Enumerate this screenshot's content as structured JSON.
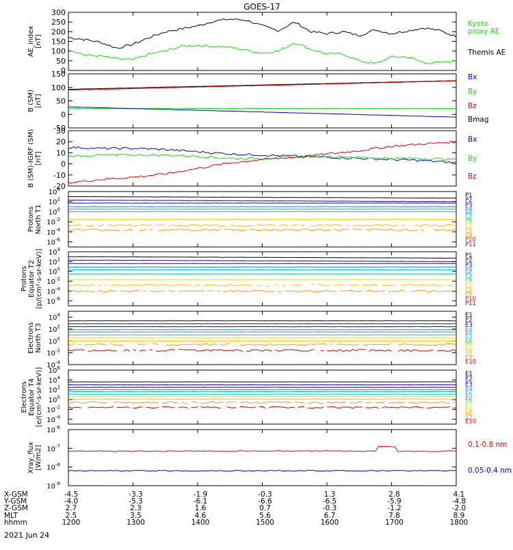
{
  "title": "GOES-17",
  "date_label": "2021 Jun 24",
  "colors": {
    "black": "#000000",
    "green": "#11dd11",
    "blue": "#0000dd",
    "red": "#dd0000",
    "cyan": "#00aadd",
    "teal": "#00cc99",
    "yellow": "#dddd00",
    "orange": "#ff9900"
  },
  "chart_data": [
    {
      "type": "line",
      "ylabel": [
        "AE_index",
        "[nT]"
      ],
      "ylim": [
        0,
        300
      ],
      "yticks": [
        "0",
        "50",
        "100",
        "150",
        "200",
        "250",
        "300"
      ],
      "legend": [
        {
          "label": "Kyoto",
          "color": "#11dd11"
        },
        {
          "label": "proxy AE",
          "color": "#11dd11"
        },
        {
          "label": "Themis AE",
          "color": "#000000"
        }
      ],
      "x": [
        1200,
        1215,
        1230,
        1245,
        1300,
        1315,
        1330,
        1345,
        1400,
        1415,
        1430,
        1445,
        1500,
        1515,
        1530,
        1545,
        1600,
        1615,
        1630,
        1645,
        1700,
        1715,
        1730,
        1745,
        1800
      ],
      "series": [
        {
          "color": "#000000",
          "values": [
            170,
            160,
            145,
            115,
            135,
            170,
            200,
            215,
            230,
            255,
            265,
            260,
            230,
            205,
            250,
            200,
            190,
            200,
            180,
            210,
            190,
            205,
            220,
            205,
            175
          ]
        },
        {
          "color": "#11dd11",
          "values": [
            110,
            80,
            75,
            60,
            55,
            85,
            100,
            125,
            130,
            125,
            120,
            105,
            90,
            100,
            145,
            110,
            85,
            85,
            50,
            35,
            70,
            70,
            40,
            40,
            50
          ]
        }
      ]
    },
    {
      "type": "line",
      "ylabel": [
        "B (SM)",
        "[nT]"
      ],
      "ylim": [
        -50,
        150
      ],
      "yticks": [
        "-50",
        "0",
        "50",
        "100",
        "150"
      ],
      "legend": [
        {
          "label": "Bx",
          "color": "#0000dd"
        },
        {
          "label": "By",
          "color": "#11dd11"
        },
        {
          "label": "Bz",
          "color": "#dd0000"
        },
        {
          "label": "Bmag",
          "color": "#000000"
        }
      ],
      "x": [
        1200,
        1800
      ],
      "series": [
        {
          "color": "#000000",
          "values": [
            93,
            125
          ]
        },
        {
          "color": "#dd0000",
          "values": [
            90,
            124
          ]
        },
        {
          "color": "#11dd11",
          "values": [
            22,
            22
          ]
        },
        {
          "color": "#0000dd",
          "values": [
            28,
            -10
          ]
        }
      ]
    },
    {
      "type": "line",
      "ylabel": [
        "B (SM)-IGRF (SM)",
        "[nT]"
      ],
      "ylim": [
        -20,
        30
      ],
      "yticks": [
        "-20",
        "-10",
        "0",
        "10",
        "20",
        "30"
      ],
      "legend": [
        {
          "label": "Bx",
          "color": "#0000dd"
        },
        {
          "label": "By",
          "color": "#11dd11"
        },
        {
          "label": "Bz",
          "color": "#dd0000"
        }
      ],
      "x": [
        1200,
        1230,
        1300,
        1330,
        1400,
        1430,
        1500,
        1530,
        1600,
        1630,
        1700,
        1730,
        1800
      ],
      "series": [
        {
          "color": "#0000dd",
          "values": [
            15,
            14,
            14,
            13,
            11,
            9,
            8,
            7,
            6,
            5,
            4,
            3,
            1
          ]
        },
        {
          "color": "#11dd11",
          "values": [
            7,
            8,
            8,
            8,
            7,
            5,
            5,
            6,
            7,
            6,
            5,
            5,
            4
          ]
        },
        {
          "color": "#dd0000",
          "values": [
            -17,
            -14,
            -12,
            -9,
            -4,
            1,
            4,
            6,
            9,
            12,
            16,
            18,
            20
          ]
        }
      ]
    },
    {
      "type": "line",
      "ylog": true,
      "ylabel": [
        "Protons",
        "North T1"
      ],
      "ylim": [
        -7,
        4
      ],
      "yticks_exp": [
        -6,
        -4,
        -2,
        0,
        2,
        4
      ],
      "legend": [
        "P1",
        "P2",
        "P3",
        "P4",
        "P5",
        "P6",
        "P7",
        "P8",
        "P9",
        "P10",
        "P11"
      ],
      "legend_colors": [
        "#000000",
        "#220088",
        "#0000dd",
        "#0088dd",
        "#00aadd",
        "#00cc99",
        "#dddd00",
        "#ffbb00",
        "#ff9900",
        "#dd2200",
        "#cc0000"
      ],
      "series_levels": [
        3.0,
        2.3,
        1.7,
        1.0,
        0.5,
        0.0,
        -1.5,
        -2.7,
        -3.6
      ]
    },
    {
      "type": "line",
      "ylog": true,
      "ylabel": [
        "Protons",
        "Equator T2",
        "[p/(cm²-s-sr-keV)]"
      ],
      "ylim": [
        -7,
        4
      ],
      "yticks_exp": [
        -6,
        -4,
        -2,
        0,
        2,
        4
      ],
      "legend": [
        "P1",
        "P2",
        "P3",
        "P4",
        "P5",
        "P6",
        "P7",
        "P8",
        "P9",
        "P10",
        "P11"
      ],
      "legend_colors": [
        "#000000",
        "#220088",
        "#0000dd",
        "#0088dd",
        "#00aadd",
        "#00cc99",
        "#dddd00",
        "#ffbb00",
        "#ff9900",
        "#dd2200",
        "#cc0000"
      ],
      "series_levels": [
        3.0,
        2.3,
        1.6,
        0.9,
        0.3,
        -0.5,
        -1.7,
        -2.8,
        -4.0
      ]
    },
    {
      "type": "line",
      "ylog": true,
      "ylabel": [
        "Electrons",
        "North T3"
      ],
      "ylim": [
        -4,
        5
      ],
      "yticks_exp": [
        -4,
        -2,
        0,
        2,
        4
      ],
      "legend": [
        "E1",
        "E2",
        "E3",
        "E4",
        "E5",
        "E6",
        "E7",
        "E8",
        "E9",
        "E10"
      ],
      "legend_colors": [
        "#000000",
        "#220088",
        "#0000dd",
        "#0088dd",
        "#00aadd",
        "#00cc99",
        "#dddd00",
        "#ffbb00",
        "#ff9900",
        "#cc0000"
      ],
      "series_levels": [
        3.4,
        2.9,
        2.4,
        1.9,
        1.5,
        1.0,
        0.5,
        0.0,
        -0.6,
        -1.6
      ]
    },
    {
      "type": "line",
      "ylog": true,
      "ylabel": [
        "Electrons",
        "Equator T4",
        "[e/(cm²-s-sr-keV)]"
      ],
      "ylim": [
        -5,
        6
      ],
      "yticks_exp": [
        -4,
        -2,
        0,
        2,
        4,
        6
      ],
      "legend": [
        "E1",
        "E2",
        "E3",
        "E4",
        "E5",
        "E6",
        "E7",
        "E8",
        "E9",
        "E10"
      ],
      "legend_colors": [
        "#000000",
        "#220088",
        "#0000dd",
        "#0088dd",
        "#00aadd",
        "#00cc99",
        "#dddd00",
        "#ffbb00",
        "#ff9900",
        "#cc0000"
      ],
      "series_levels": [
        3.6,
        3.0,
        2.5,
        2.0,
        1.6,
        1.1,
        0.6,
        0.1,
        -0.6,
        -1.6
      ]
    },
    {
      "type": "line",
      "ylog": true,
      "ylabel": [
        "Xray_flux",
        "[W/m2]"
      ],
      "ylim": [
        -9,
        -6
      ],
      "yticks_exp": [
        -9,
        -8,
        -7,
        -6
      ],
      "legend": [
        {
          "label": "0.1-0.8 nm",
          "color": "#dd0000"
        },
        {
          "label": "0.05-0.4 nm",
          "color": "#0000dd"
        }
      ],
      "series_levels": [
        -7.15,
        -8.2
      ]
    }
  ],
  "x_axis": {
    "row_labels": [
      "X-GSM",
      "Y-GSM",
      "Z-GSM",
      "MLT",
      "hhmm"
    ],
    "columns": [
      [
        "-4.5",
        "-4.0",
        "2.7",
        "2.5",
        "1200"
      ],
      [
        "-3.3",
        "-5.3",
        "2.3",
        "3.5",
        "1300"
      ],
      [
        "-1.9",
        "-6.1",
        "1.6",
        "4.6",
        "1400"
      ],
      [
        "-0.3",
        "-6.6",
        "0.7",
        "5.6",
        "1500"
      ],
      [
        "1.3",
        "-6.5",
        "-0.3",
        "6.7",
        "1600"
      ],
      [
        "2.8",
        "-5.9",
        "-1.2",
        "7.8",
        "1700"
      ],
      [
        "4.1",
        "-4.8",
        "-2.0",
        "8.9",
        "1800"
      ]
    ],
    "xlim": [
      1200,
      1800
    ]
  }
}
